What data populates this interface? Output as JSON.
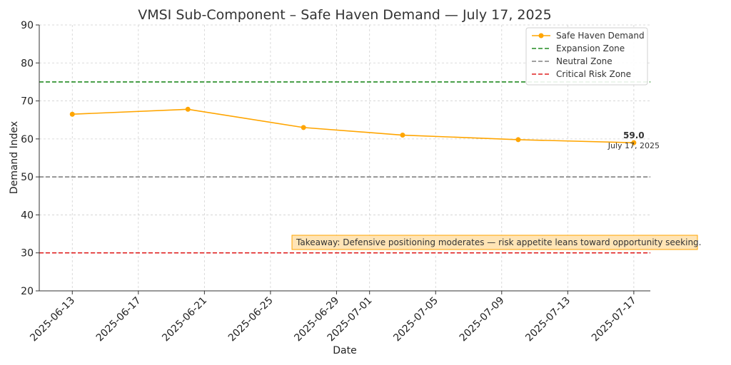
{
  "chart_data": {
    "type": "line",
    "title": "VMSI Sub-Component – Safe Haven Demand — July 17, 2025",
    "xlabel": "Date",
    "ylabel": "Demand Index",
    "ylim": [
      20,
      90
    ],
    "yticks": [
      20,
      30,
      40,
      50,
      60,
      70,
      80,
      90
    ],
    "xlim": [
      "2025-06-11",
      "2025-07-18"
    ],
    "xticks": [
      "2025-06-13",
      "2025-06-17",
      "2025-06-21",
      "2025-06-25",
      "2025-06-29",
      "2025-07-01",
      "2025-07-05",
      "2025-07-09",
      "2025-07-13",
      "2025-07-17"
    ],
    "grid": true,
    "legend_position": "top-right",
    "series": [
      {
        "name": "Safe Haven Demand",
        "color": "#FFA500",
        "x": [
          "2025-06-13",
          "2025-06-20",
          "2025-06-27",
          "2025-07-03",
          "2025-07-10",
          "2025-07-17"
        ],
        "y": [
          66.5,
          67.8,
          63.0,
          61.0,
          59.8,
          59.0
        ]
      }
    ],
    "reference_lines": [
      {
        "name": "Expansion Zone",
        "y": 75,
        "color": "#228B22"
      },
      {
        "name": "Neutral Zone",
        "y": 50,
        "color": "#808080"
      },
      {
        "name": "Critical Risk Zone",
        "y": 30,
        "color": "#E02020"
      }
    ],
    "annotations": {
      "last_value": "59.0",
      "last_date": "July 17, 2025",
      "takeaway": "Takeaway: Defensive positioning moderates — risk appetite leans toward opportunity seeking."
    },
    "colors": {
      "takeaway_bg": "#FFE4B5",
      "takeaway_border": "#FFA500"
    }
  }
}
